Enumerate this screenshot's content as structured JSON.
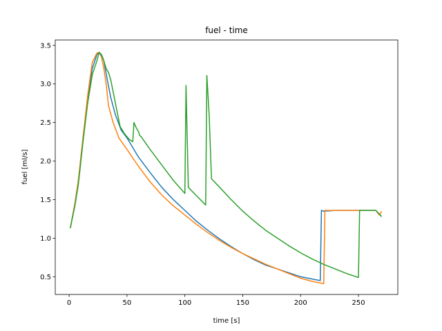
{
  "chart_data": {
    "type": "line",
    "title": "fuel - time",
    "xlabel": "time [s]",
    "ylabel": "fuel [ml/s]",
    "xlim": [
      -12,
      284
    ],
    "ylim": [
      0.27,
      3.57
    ],
    "xticks": [
      0,
      50,
      100,
      150,
      200,
      250
    ],
    "yticks": [
      0.5,
      1.0,
      1.5,
      2.0,
      2.5,
      3.0,
      3.5
    ],
    "ytick_labels": [
      "0.5",
      "1.0",
      "1.5",
      "2.0",
      "2.5",
      "3.0",
      "3.5"
    ],
    "grid": false,
    "series": [
      {
        "color": "#1f77b4",
        "x": [
          1,
          5,
          8,
          12,
          16,
          20,
          24,
          26,
          28,
          30,
          33,
          36,
          40,
          45,
          50,
          60,
          70,
          80,
          90,
          100,
          110,
          120,
          130,
          140,
          150,
          160,
          170,
          180,
          190,
          200,
          210,
          217,
          218,
          220,
          230,
          240,
          250,
          260,
          265,
          270
        ],
        "y": [
          1.13,
          1.45,
          1.75,
          2.3,
          2.8,
          3.2,
          3.38,
          3.41,
          3.38,
          3.3,
          3.05,
          2.82,
          2.6,
          2.4,
          2.3,
          2.05,
          1.85,
          1.66,
          1.5,
          1.36,
          1.22,
          1.1,
          0.99,
          0.89,
          0.8,
          0.72,
          0.65,
          0.6,
          0.55,
          0.5,
          0.47,
          0.45,
          1.36,
          1.35,
          1.36,
          1.36,
          1.36,
          1.36,
          1.36,
          1.28
        ]
      },
      {
        "color": "#ff7f0e",
        "x": [
          1,
          5,
          8,
          12,
          16,
          20,
          24,
          26,
          28,
          30,
          32,
          34,
          38,
          43,
          50,
          60,
          70,
          80,
          90,
          100,
          110,
          120,
          130,
          140,
          150,
          160,
          170,
          180,
          190,
          200,
          210,
          220,
          221,
          222,
          230,
          240,
          250,
          260,
          265,
          268,
          270
        ],
        "y": [
          1.13,
          1.45,
          1.75,
          2.3,
          2.85,
          3.28,
          3.4,
          3.41,
          3.35,
          3.2,
          3.0,
          2.72,
          2.5,
          2.3,
          2.15,
          1.93,
          1.73,
          1.56,
          1.42,
          1.3,
          1.18,
          1.07,
          0.97,
          0.88,
          0.8,
          0.73,
          0.66,
          0.6,
          0.54,
          0.48,
          0.44,
          0.41,
          1.36,
          1.36,
          1.36,
          1.36,
          1.36,
          1.36,
          1.36,
          1.3,
          1.35
        ]
      },
      {
        "color": "#2ca02c",
        "x": [
          1,
          5,
          8,
          12,
          16,
          20,
          24,
          26,
          28,
          30,
          32,
          34,
          36,
          40,
          44,
          48,
          52,
          55,
          56,
          58,
          60,
          61,
          62,
          70,
          80,
          90,
          100,
          101,
          103,
          110,
          118,
          119,
          121,
          123,
          130,
          140,
          150,
          160,
          170,
          180,
          190,
          200,
          210,
          220,
          230,
          240,
          250,
          251,
          252,
          260,
          265,
          270
        ],
        "y": [
          1.13,
          1.42,
          1.7,
          2.25,
          2.75,
          3.12,
          3.3,
          3.41,
          3.37,
          3.3,
          3.2,
          3.15,
          3.05,
          2.75,
          2.45,
          2.35,
          2.28,
          2.25,
          2.5,
          2.43,
          2.38,
          2.33,
          2.32,
          2.15,
          1.95,
          1.75,
          1.58,
          2.98,
          1.66,
          1.55,
          1.43,
          3.11,
          2.6,
          1.77,
          1.66,
          1.5,
          1.35,
          1.22,
          1.1,
          1.0,
          0.9,
          0.81,
          0.73,
          0.66,
          0.6,
          0.54,
          0.49,
          1.36,
          1.36,
          1.36,
          1.36,
          1.28
        ]
      }
    ]
  }
}
